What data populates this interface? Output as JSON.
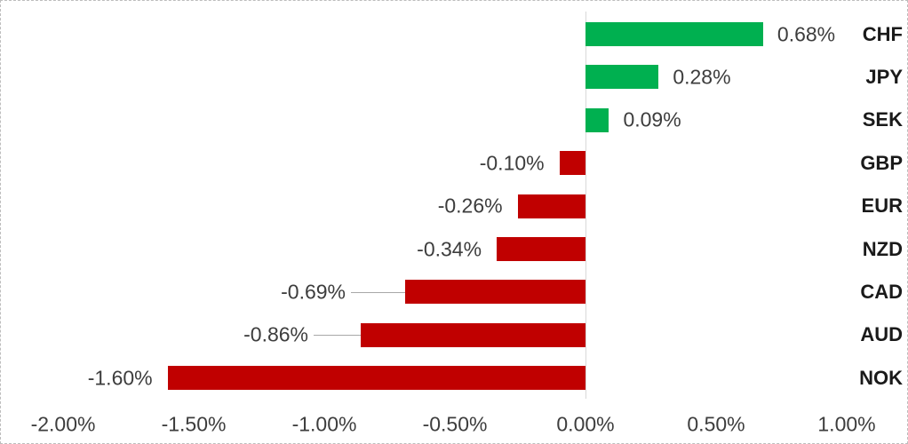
{
  "chart_data": {
    "type": "bar",
    "orientation": "horizontal",
    "title": "",
    "xlabel": "",
    "ylabel": "",
    "categories": [
      "CHF",
      "JPY",
      "SEK",
      "GBP",
      "EUR",
      "NZD",
      "CAD",
      "AUD",
      "NOK"
    ],
    "values": [
      0.68,
      0.28,
      0.09,
      -0.1,
      -0.26,
      -0.34,
      -0.69,
      -0.86,
      -1.6
    ],
    "data_labels": [
      "0.68%",
      "0.28%",
      "0.09%",
      "-0.10%",
      "-0.26%",
      "-0.34%",
      "-0.69%",
      "-0.86%",
      "-1.60%"
    ],
    "x_tick_labels": [
      "-2.00%",
      "-1.50%",
      "-1.00%",
      "-0.50%",
      "0.00%",
      "0.50%",
      "1.00%"
    ],
    "x_tick_values": [
      -2.0,
      -1.5,
      -1.0,
      -0.5,
      0.0,
      0.5,
      1.0
    ],
    "xlim": [
      -2.24,
      1.24
    ],
    "grid": "off",
    "legend": "none",
    "leader_line_categories": [
      "CAD",
      "AUD"
    ],
    "colors": {
      "positive_bar": "#00B050",
      "negative_bar": "#C00000",
      "value_label_text": "#3D3D3D",
      "axis_tick_text": "#3D3D3D",
      "category_label_text": "#1A1A1A",
      "axis_line": "#D8D8D8",
      "leader_line": "#A8A8A8",
      "chart_border": "#BDBDBD",
      "background": "#FFFFFF"
    }
  }
}
